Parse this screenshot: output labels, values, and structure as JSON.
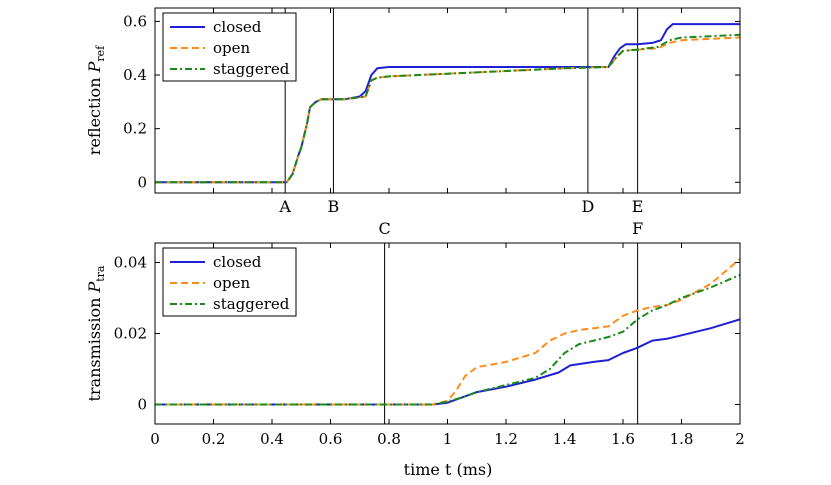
{
  "colors": {
    "closed": "#1f1fd6",
    "open": "#ff8c1a",
    "staggered": "#1a8a1a"
  },
  "xlabel": "time t (ms)",
  "top_ylabel": "reflection P_ref",
  "bottom_ylabel": "transmission P_tra",
  "top_markers": [
    {
      "label": "A",
      "x": 0.445
    },
    {
      "label": "B",
      "x": 0.61
    },
    {
      "label": "D",
      "x": 1.48
    },
    {
      "label": "E",
      "x": 1.65
    }
  ],
  "bottom_markers": [
    {
      "label": "C",
      "x": 0.785
    },
    {
      "label": "F",
      "x": 1.65
    }
  ],
  "chart_data": [
    {
      "type": "line",
      "title": "",
      "ylabel": "reflection P_ref",
      "xlim": [
        0,
        2
      ],
      "ylim": [
        -0.04,
        0.65
      ],
      "yticks": [
        "0",
        "0.2",
        "0.4",
        "0.6"
      ],
      "ytick_values": [
        0,
        0.2,
        0.4,
        0.6
      ],
      "legend": "top-left",
      "series": [
        {
          "name": "closed",
          "style": "solid",
          "x": [
            0,
            0.45,
            0.47,
            0.49,
            0.5,
            0.52,
            0.53,
            0.55,
            0.57,
            0.6,
            0.65,
            0.7,
            0.72,
            0.74,
            0.76,
            0.8,
            1.0,
            1.2,
            1.4,
            1.55,
            1.57,
            1.59,
            1.61,
            1.65,
            1.7,
            1.73,
            1.75,
            1.77,
            1.85,
            2.0
          ],
          "y": [
            0,
            0,
            0.03,
            0.1,
            0.13,
            0.22,
            0.28,
            0.3,
            0.31,
            0.31,
            0.31,
            0.32,
            0.34,
            0.4,
            0.425,
            0.43,
            0.43,
            0.43,
            0.43,
            0.43,
            0.47,
            0.5,
            0.515,
            0.515,
            0.52,
            0.53,
            0.57,
            0.59,
            0.59,
            0.59
          ]
        },
        {
          "name": "open",
          "style": "dashed",
          "x": [
            0,
            0.45,
            0.47,
            0.49,
            0.5,
            0.52,
            0.53,
            0.55,
            0.57,
            0.6,
            0.65,
            0.72,
            0.74,
            0.76,
            0.8,
            1.0,
            1.2,
            1.4,
            1.55,
            1.58,
            1.6,
            1.65,
            1.72,
            1.76,
            1.8,
            1.9,
            2.0
          ],
          "y": [
            0,
            0,
            0.03,
            0.1,
            0.13,
            0.22,
            0.28,
            0.3,
            0.31,
            0.31,
            0.31,
            0.32,
            0.38,
            0.39,
            0.395,
            0.405,
            0.415,
            0.425,
            0.43,
            0.47,
            0.49,
            0.495,
            0.5,
            0.52,
            0.53,
            0.535,
            0.54
          ]
        },
        {
          "name": "staggered",
          "style": "dashdot",
          "x": [
            0,
            0.45,
            0.47,
            0.49,
            0.5,
            0.52,
            0.53,
            0.55,
            0.57,
            0.6,
            0.65,
            0.72,
            0.74,
            0.76,
            0.8,
            1.0,
            1.2,
            1.4,
            1.55,
            1.58,
            1.6,
            1.65,
            1.72,
            1.76,
            1.8,
            1.9,
            2.0
          ],
          "y": [
            0,
            0,
            0.03,
            0.1,
            0.13,
            0.22,
            0.28,
            0.3,
            0.31,
            0.31,
            0.31,
            0.32,
            0.38,
            0.39,
            0.395,
            0.405,
            0.415,
            0.425,
            0.43,
            0.47,
            0.49,
            0.495,
            0.505,
            0.53,
            0.54,
            0.545,
            0.55
          ]
        }
      ]
    },
    {
      "type": "line",
      "title": "",
      "xlabel": "time t (ms)",
      "ylabel": "transmission P_tra",
      "xlim": [
        0,
        2
      ],
      "ylim": [
        -0.0055,
        0.0455
      ],
      "xticks": [
        "0",
        "0.2",
        "0.4",
        "0.6",
        "0.8",
        "1",
        "1.2",
        "1.4",
        "1.6",
        "1.8",
        "2"
      ],
      "xtick_values": [
        0,
        0.2,
        0.4,
        0.6,
        0.8,
        1.0,
        1.2,
        1.4,
        1.6,
        1.8,
        2.0
      ],
      "yticks": [
        "0",
        "0.02",
        "0.04"
      ],
      "ytick_values": [
        0,
        0.02,
        0.04
      ],
      "legend": "top-left",
      "series": [
        {
          "name": "closed",
          "style": "solid",
          "x": [
            0,
            0.95,
            1.0,
            1.05,
            1.1,
            1.2,
            1.3,
            1.38,
            1.42,
            1.5,
            1.55,
            1.6,
            1.65,
            1.7,
            1.75,
            1.8,
            1.9,
            2.0
          ],
          "y": [
            0,
            0,
            0.0005,
            0.002,
            0.0035,
            0.005,
            0.007,
            0.009,
            0.011,
            0.012,
            0.0125,
            0.0145,
            0.016,
            0.018,
            0.0185,
            0.0195,
            0.0215,
            0.024
          ]
        },
        {
          "name": "open",
          "style": "dashed",
          "x": [
            0,
            0.95,
            1.0,
            1.03,
            1.06,
            1.1,
            1.2,
            1.3,
            1.35,
            1.4,
            1.45,
            1.5,
            1.55,
            1.6,
            1.65,
            1.7,
            1.75,
            1.8,
            1.9,
            2.0
          ],
          "y": [
            0,
            0,
            0.001,
            0.004,
            0.008,
            0.0105,
            0.012,
            0.0145,
            0.018,
            0.02,
            0.021,
            0.0215,
            0.022,
            0.025,
            0.0265,
            0.0275,
            0.028,
            0.0295,
            0.034,
            0.041
          ]
        },
        {
          "name": "staggered",
          "style": "dashdot",
          "x": [
            0,
            0.95,
            1.0,
            1.05,
            1.1,
            1.2,
            1.3,
            1.35,
            1.4,
            1.45,
            1.5,
            1.55,
            1.6,
            1.65,
            1.7,
            1.75,
            1.8,
            1.9,
            2.0
          ],
          "y": [
            0,
            0,
            0.0008,
            0.002,
            0.0035,
            0.0055,
            0.0075,
            0.01,
            0.0145,
            0.017,
            0.018,
            0.019,
            0.0205,
            0.024,
            0.0265,
            0.028,
            0.03,
            0.033,
            0.0365
          ]
        }
      ]
    }
  ]
}
